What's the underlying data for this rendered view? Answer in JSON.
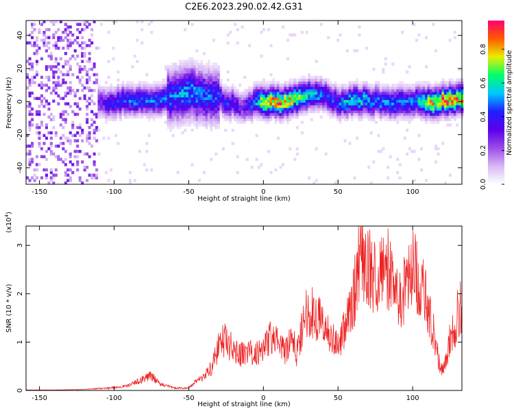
{
  "title": "C2E6.2023.290.02.42.G31",
  "chart_data": [
    {
      "type": "heatmap",
      "xlabel": "Height of straight line (km)",
      "ylabel": "Frequency (Hz)",
      "xlim": [
        -159,
        133
      ],
      "ylim": [
        -50,
        49
      ],
      "xticks": [
        -150,
        -100,
        -50,
        0,
        50,
        100
      ],
      "yticks": [
        -40,
        -20,
        0,
        20,
        40
      ],
      "colorbar": {
        "label": "Normalized spectral amplitude",
        "range": [
          0,
          0.97
        ],
        "ticks": [
          0.0,
          0.2,
          0.4,
          0.6,
          0.8
        ],
        "colormap": [
          "#ffffff",
          "#d8b8f4",
          "#9a4ce8",
          "#5a00ea",
          "#2020ff",
          "#00c8ff",
          "#00ff66",
          "#e8ee00",
          "#ff5a00",
          "#ff0070"
        ]
      },
      "ridge": {
        "description_points_height_km": [
          -159,
          -140,
          -120,
          -110,
          -100,
          -90,
          -80,
          -70,
          -60,
          -55,
          -50,
          -40,
          -30,
          -25,
          -20,
          -15,
          -10,
          -5,
          0,
          10,
          20,
          25,
          30,
          40,
          45,
          50,
          55,
          60,
          70,
          80,
          90,
          100,
          110,
          120,
          133
        ],
        "frequency_hz": [
          0,
          0,
          0,
          -2,
          -1,
          0,
          0,
          1,
          3,
          5,
          5,
          3,
          1,
          -1,
          -2,
          -4,
          -2,
          -1,
          0,
          -1,
          1,
          3,
          4,
          3,
          1,
          -1,
          -1,
          0,
          0,
          -1,
          -1,
          0,
          -1,
          0,
          1
        ],
        "peak_amplitude": [
          0.3,
          0.3,
          0.3,
          0.35,
          0.45,
          0.5,
          0.5,
          0.5,
          0.5,
          0.55,
          0.55,
          0.5,
          0.45,
          0.45,
          0.4,
          0.3,
          0.45,
          0.6,
          0.85,
          0.9,
          0.8,
          0.7,
          0.6,
          0.5,
          0.45,
          0.5,
          0.6,
          0.65,
          0.55,
          0.5,
          0.55,
          0.5,
          0.8,
          0.9,
          0.85
        ]
      }
    },
    {
      "type": "line",
      "xlabel": "Height of straight line (km)",
      "ylabel": "SNR (10 * v/v)",
      "yscale_label": "(x10",
      "yscale_exp": "4",
      "yscale_close": ")",
      "xlim": [
        -159,
        133
      ],
      "ylim": [
        0,
        3.4
      ],
      "xticks": [
        -150,
        -100,
        -50,
        0,
        50,
        100
      ],
      "yticks": [
        0,
        1,
        2,
        3
      ],
      "series": [
        {
          "color": "#ee2222",
          "x": [
            -159,
            -140,
            -120,
            -100,
            -90,
            -80,
            -75,
            -70,
            -60,
            -50,
            -45,
            -40,
            -35,
            -30,
            -26,
            -20,
            -15,
            -10,
            -5,
            0,
            5,
            10,
            15,
            20,
            22,
            25,
            30,
            35,
            40,
            45,
            50,
            55,
            60,
            63,
            65,
            68,
            70,
            75,
            80,
            85,
            88,
            92,
            95,
            100,
            105,
            110,
            115,
            118,
            120,
            122,
            125,
            128,
            130,
            133
          ],
          "y": [
            0.01,
            0.01,
            0.02,
            0.06,
            0.1,
            0.25,
            0.3,
            0.15,
            0.05,
            0.05,
            0.2,
            0.3,
            0.45,
            0.9,
            1.05,
            0.85,
            0.75,
            0.8,
            0.75,
            0.9,
            1.1,
            0.95,
            0.8,
            1.1,
            0.7,
            1.2,
            1.7,
            1.55,
            1.4,
            1.1,
            0.95,
            1.35,
            1.8,
            2.5,
            2.9,
            2.75,
            2.6,
            2.3,
            2.75,
            2.4,
            2.1,
            1.9,
            2.1,
            2.55,
            2.25,
            1.75,
            1.05,
            0.55,
            0.45,
            0.6,
            1.05,
            1.25,
            1.6,
            1.75
          ]
        }
      ]
    }
  ]
}
